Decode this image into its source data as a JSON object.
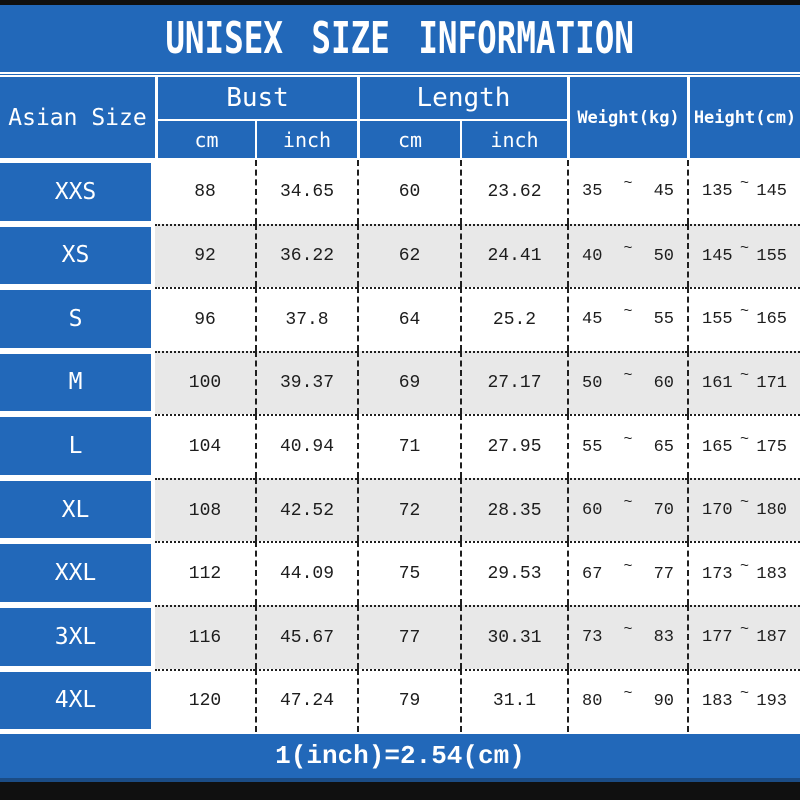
{
  "title": "UNISEX SIZE INFORMATION",
  "header": {
    "size_col": "Asian Size",
    "groups": [
      {
        "label": "Bust",
        "subcols": [
          "cm",
          "inch"
        ]
      },
      {
        "label": "Length",
        "subcols": [
          "cm",
          "inch"
        ]
      }
    ],
    "single_cols": [
      "Weight(kg)",
      "Height(cm)"
    ],
    "tilde": "~"
  },
  "rows": [
    {
      "size": "XXS",
      "bust_cm": "88",
      "bust_inch": "34.65",
      "length_cm": "60",
      "length_inch": "23.62",
      "weight_min": "35",
      "weight_max": "45",
      "height_min": "135",
      "height_max": "145"
    },
    {
      "size": "XS",
      "bust_cm": "92",
      "bust_inch": "36.22",
      "length_cm": "62",
      "length_inch": "24.41",
      "weight_min": "40",
      "weight_max": "50",
      "height_min": "145",
      "height_max": "155"
    },
    {
      "size": "S",
      "bust_cm": "96",
      "bust_inch": "37.8",
      "length_cm": "64",
      "length_inch": "25.2",
      "weight_min": "45",
      "weight_max": "55",
      "height_min": "155",
      "height_max": "165"
    },
    {
      "size": "M",
      "bust_cm": "100",
      "bust_inch": "39.37",
      "length_cm": "69",
      "length_inch": "27.17",
      "weight_min": "50",
      "weight_max": "60",
      "height_min": "161",
      "height_max": "171"
    },
    {
      "size": "L",
      "bust_cm": "104",
      "bust_inch": "40.94",
      "length_cm": "71",
      "length_inch": "27.95",
      "weight_min": "55",
      "weight_max": "65",
      "height_min": "165",
      "height_max": "175"
    },
    {
      "size": "XL",
      "bust_cm": "108",
      "bust_inch": "42.52",
      "length_cm": "72",
      "length_inch": "28.35",
      "weight_min": "60",
      "weight_max": "70",
      "height_min": "170",
      "height_max": "180"
    },
    {
      "size": "XXL",
      "bust_cm": "112",
      "bust_inch": "44.09",
      "length_cm": "75",
      "length_inch": "29.53",
      "weight_min": "67",
      "weight_max": "77",
      "height_min": "173",
      "height_max": "183"
    },
    {
      "size": "3XL",
      "bust_cm": "116",
      "bust_inch": "45.67",
      "length_cm": "77",
      "length_inch": "30.31",
      "weight_min": "73",
      "weight_max": "83",
      "height_min": "177",
      "height_max": "187"
    },
    {
      "size": "4XL",
      "bust_cm": "120",
      "bust_inch": "47.24",
      "length_cm": "79",
      "length_inch": "31.1",
      "weight_min": "80",
      "weight_max": "90",
      "height_min": "183",
      "height_max": "193"
    }
  ],
  "footer_note": "1(inch)=2.54(cm)",
  "colors": {
    "blue": "#2268b9",
    "navy_line": "#1b4c85",
    "frame_black": "#101010",
    "row_white": "#ffffff",
    "row_alt_gray": "#e8e8e8",
    "grid_line": "#1f1f1f",
    "text_light": "#ffffff",
    "text_dark": "#1d1d1d"
  },
  "chart_data": {
    "type": "table",
    "title": "UNISEX SIZE INFORMATION",
    "columns": [
      "Asian Size",
      "Bust cm",
      "Bust inch",
      "Length cm",
      "Length inch",
      "Weight(kg)",
      "Height(cm)"
    ],
    "rows": [
      [
        "XXS",
        88,
        34.65,
        60,
        23.62,
        "35 ~ 45",
        "135 ~ 145"
      ],
      [
        "XS",
        92,
        36.22,
        62,
        24.41,
        "40 ~ 50",
        "145 ~ 155"
      ],
      [
        "S",
        96,
        37.8,
        64,
        25.2,
        "45 ~ 55",
        "155 ~ 165"
      ],
      [
        "M",
        100,
        39.37,
        69,
        27.17,
        "50 ~ 60",
        "161 ~ 171"
      ],
      [
        "L",
        104,
        40.94,
        71,
        27.95,
        "55 ~ 65",
        "165 ~ 175"
      ],
      [
        "XL",
        108,
        42.52,
        72,
        28.35,
        "60 ~ 70",
        "170 ~ 180"
      ],
      [
        "XXL",
        112,
        44.09,
        75,
        29.53,
        "67 ~ 77",
        "173 ~ 183"
      ],
      [
        "3XL",
        116,
        45.67,
        77,
        30.31,
        "73 ~ 83",
        "177 ~ 187"
      ],
      [
        "4XL",
        120,
        47.24,
        79,
        31.1,
        "80 ~ 90",
        "183 ~ 193"
      ]
    ],
    "footnote": "1(inch)=2.54(cm)",
    "layout_hints": {
      "header_spans": [
        "Bust and Length each split into cm/inch subcolumns",
        "Weight and Height span both header rows"
      ],
      "row_shading": "alternating white / light gray",
      "grid": "dotted horizontal, dashed vertical"
    }
  }
}
